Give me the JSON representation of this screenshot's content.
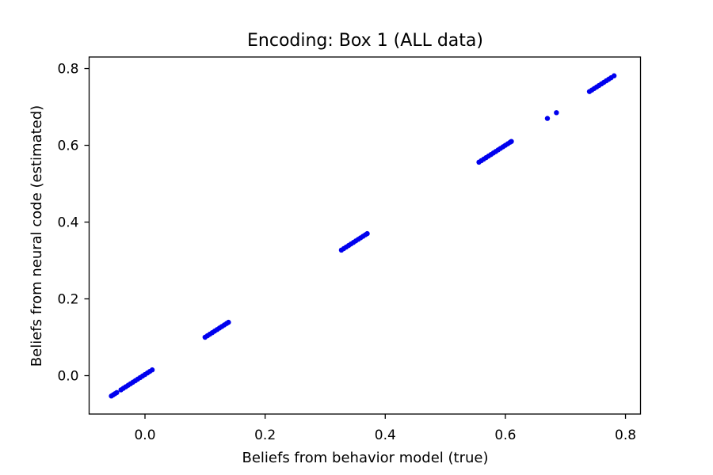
{
  "chart_data": {
    "type": "scatter",
    "title": "Encoding: Box 1 (ALL data)",
    "xlabel": "Beliefs from behavior model (true)",
    "ylabel": "Beliefs from neural code (estimated)",
    "xlim": [
      -0.093,
      0.825
    ],
    "ylim": [
      -0.1,
      0.83
    ],
    "xticks": [
      0.0,
      0.2,
      0.4,
      0.6,
      0.8
    ],
    "xtick_labels": [
      "0.0",
      "0.2",
      "0.4",
      "0.6",
      "0.8"
    ],
    "yticks": [
      0.0,
      0.2,
      0.4,
      0.6,
      0.8
    ],
    "ytick_labels": [
      "0.0",
      "0.2",
      "0.4",
      "0.6",
      "0.8"
    ],
    "grid": false,
    "marker_color": "#0000ee",
    "series": [
      {
        "points": [
          [
            -0.056,
            -0.053
          ],
          [
            -0.053,
            -0.05
          ],
          [
            -0.05,
            -0.047
          ],
          [
            -0.047,
            -0.044
          ],
          [
            -0.04,
            -0.037
          ],
          [
            -0.036,
            -0.033
          ],
          [
            -0.032,
            -0.029
          ],
          [
            -0.028,
            -0.025
          ],
          [
            -0.024,
            -0.021
          ],
          [
            -0.02,
            -0.017
          ],
          [
            -0.016,
            -0.013
          ],
          [
            -0.012,
            -0.009
          ],
          [
            -0.008,
            -0.005
          ],
          [
            -0.004,
            -0.001
          ],
          [
            0.0,
            0.003
          ],
          [
            0.004,
            0.007
          ],
          [
            0.008,
            0.011
          ],
          [
            0.012,
            0.015
          ],
          [
            0.1,
            0.1
          ],
          [
            0.104,
            0.104
          ],
          [
            0.108,
            0.108
          ],
          [
            0.112,
            0.112
          ],
          [
            0.116,
            0.116
          ],
          [
            0.12,
            0.12
          ],
          [
            0.124,
            0.124
          ],
          [
            0.128,
            0.128
          ],
          [
            0.132,
            0.132
          ],
          [
            0.136,
            0.136
          ],
          [
            0.139,
            0.139
          ],
          [
            0.327,
            0.327
          ],
          [
            0.331,
            0.331
          ],
          [
            0.335,
            0.335
          ],
          [
            0.339,
            0.339
          ],
          [
            0.343,
            0.343
          ],
          [
            0.347,
            0.347
          ],
          [
            0.351,
            0.351
          ],
          [
            0.355,
            0.355
          ],
          [
            0.359,
            0.359
          ],
          [
            0.363,
            0.363
          ],
          [
            0.367,
            0.367
          ],
          [
            0.37,
            0.37
          ],
          [
            0.556,
            0.556
          ],
          [
            0.56,
            0.56
          ],
          [
            0.564,
            0.564
          ],
          [
            0.568,
            0.568
          ],
          [
            0.572,
            0.572
          ],
          [
            0.576,
            0.576
          ],
          [
            0.58,
            0.58
          ],
          [
            0.584,
            0.584
          ],
          [
            0.588,
            0.588
          ],
          [
            0.592,
            0.592
          ],
          [
            0.596,
            0.596
          ],
          [
            0.6,
            0.6
          ],
          [
            0.604,
            0.604
          ],
          [
            0.608,
            0.608
          ],
          [
            0.61,
            0.61
          ],
          [
            0.67,
            0.67
          ],
          [
            0.685,
            0.685
          ],
          [
            0.74,
            0.74
          ],
          [
            0.744,
            0.744
          ],
          [
            0.748,
            0.748
          ],
          [
            0.752,
            0.752
          ],
          [
            0.756,
            0.756
          ],
          [
            0.76,
            0.76
          ],
          [
            0.764,
            0.764
          ],
          [
            0.768,
            0.768
          ],
          [
            0.772,
            0.772
          ],
          [
            0.776,
            0.776
          ],
          [
            0.781,
            0.781
          ]
        ]
      }
    ]
  }
}
